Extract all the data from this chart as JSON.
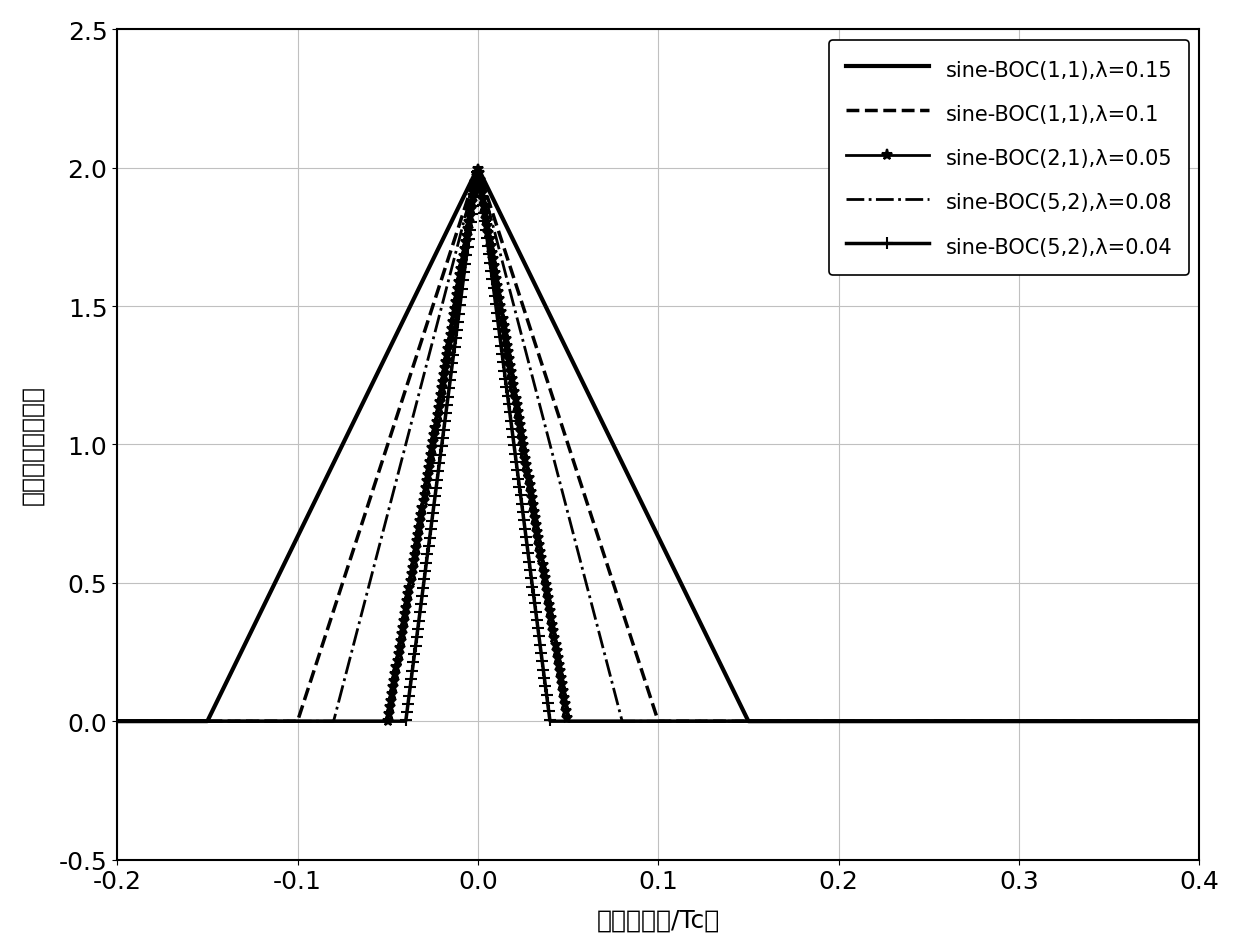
{
  "xlabel": "码片延迟（/Tc）",
  "ylabel": "归一化相关函数値",
  "xlim": [
    -0.2,
    0.4
  ],
  "ylim": [
    -0.5,
    2.5
  ],
  "xticks": [
    -0.2,
    -0.1,
    0.0,
    0.1,
    0.2,
    0.3,
    0.4
  ],
  "yticks": [
    -0.5,
    0.0,
    0.5,
    1.0,
    1.5,
    2.0,
    2.5
  ],
  "series": [
    {
      "label": "sine-BOC(1,1),λ=0.15",
      "lambda": 0.15,
      "linestyle": "-",
      "linewidth": 3.0,
      "marker": "None",
      "markersize": 0,
      "markevery": 1,
      "color": "#000000"
    },
    {
      "label": "sine-BOC(1,1),λ=0.1",
      "lambda": 0.1,
      "linestyle": "--",
      "linewidth": 2.5,
      "marker": "None",
      "markersize": 0,
      "markevery": 1,
      "color": "#000000"
    },
    {
      "label": "sine-BOC(2,1),λ=0.05",
      "lambda": 0.05,
      "linestyle": "-",
      "linewidth": 2.0,
      "marker": "*",
      "markersize": 7,
      "markevery": 3,
      "color": "#000000"
    },
    {
      "label": "sine-BOC(5,2),λ=0.08",
      "lambda": 0.08,
      "linestyle": "-.",
      "linewidth": 2.0,
      "marker": "None",
      "markersize": 0,
      "markevery": 1,
      "color": "#000000"
    },
    {
      "label": "sine-BOC(5,2),λ=0.04",
      "lambda": 0.04,
      "linestyle": "-",
      "linewidth": 2.5,
      "marker": "+",
      "markersize": 8,
      "markevery": 3,
      "color": "#000000"
    }
  ],
  "peak_value": 2.0,
  "background_color": "#ffffff",
  "grid_color": "#c0c0c0",
  "font_size": 18,
  "legend_fontsize": 15,
  "n_points": 3000
}
